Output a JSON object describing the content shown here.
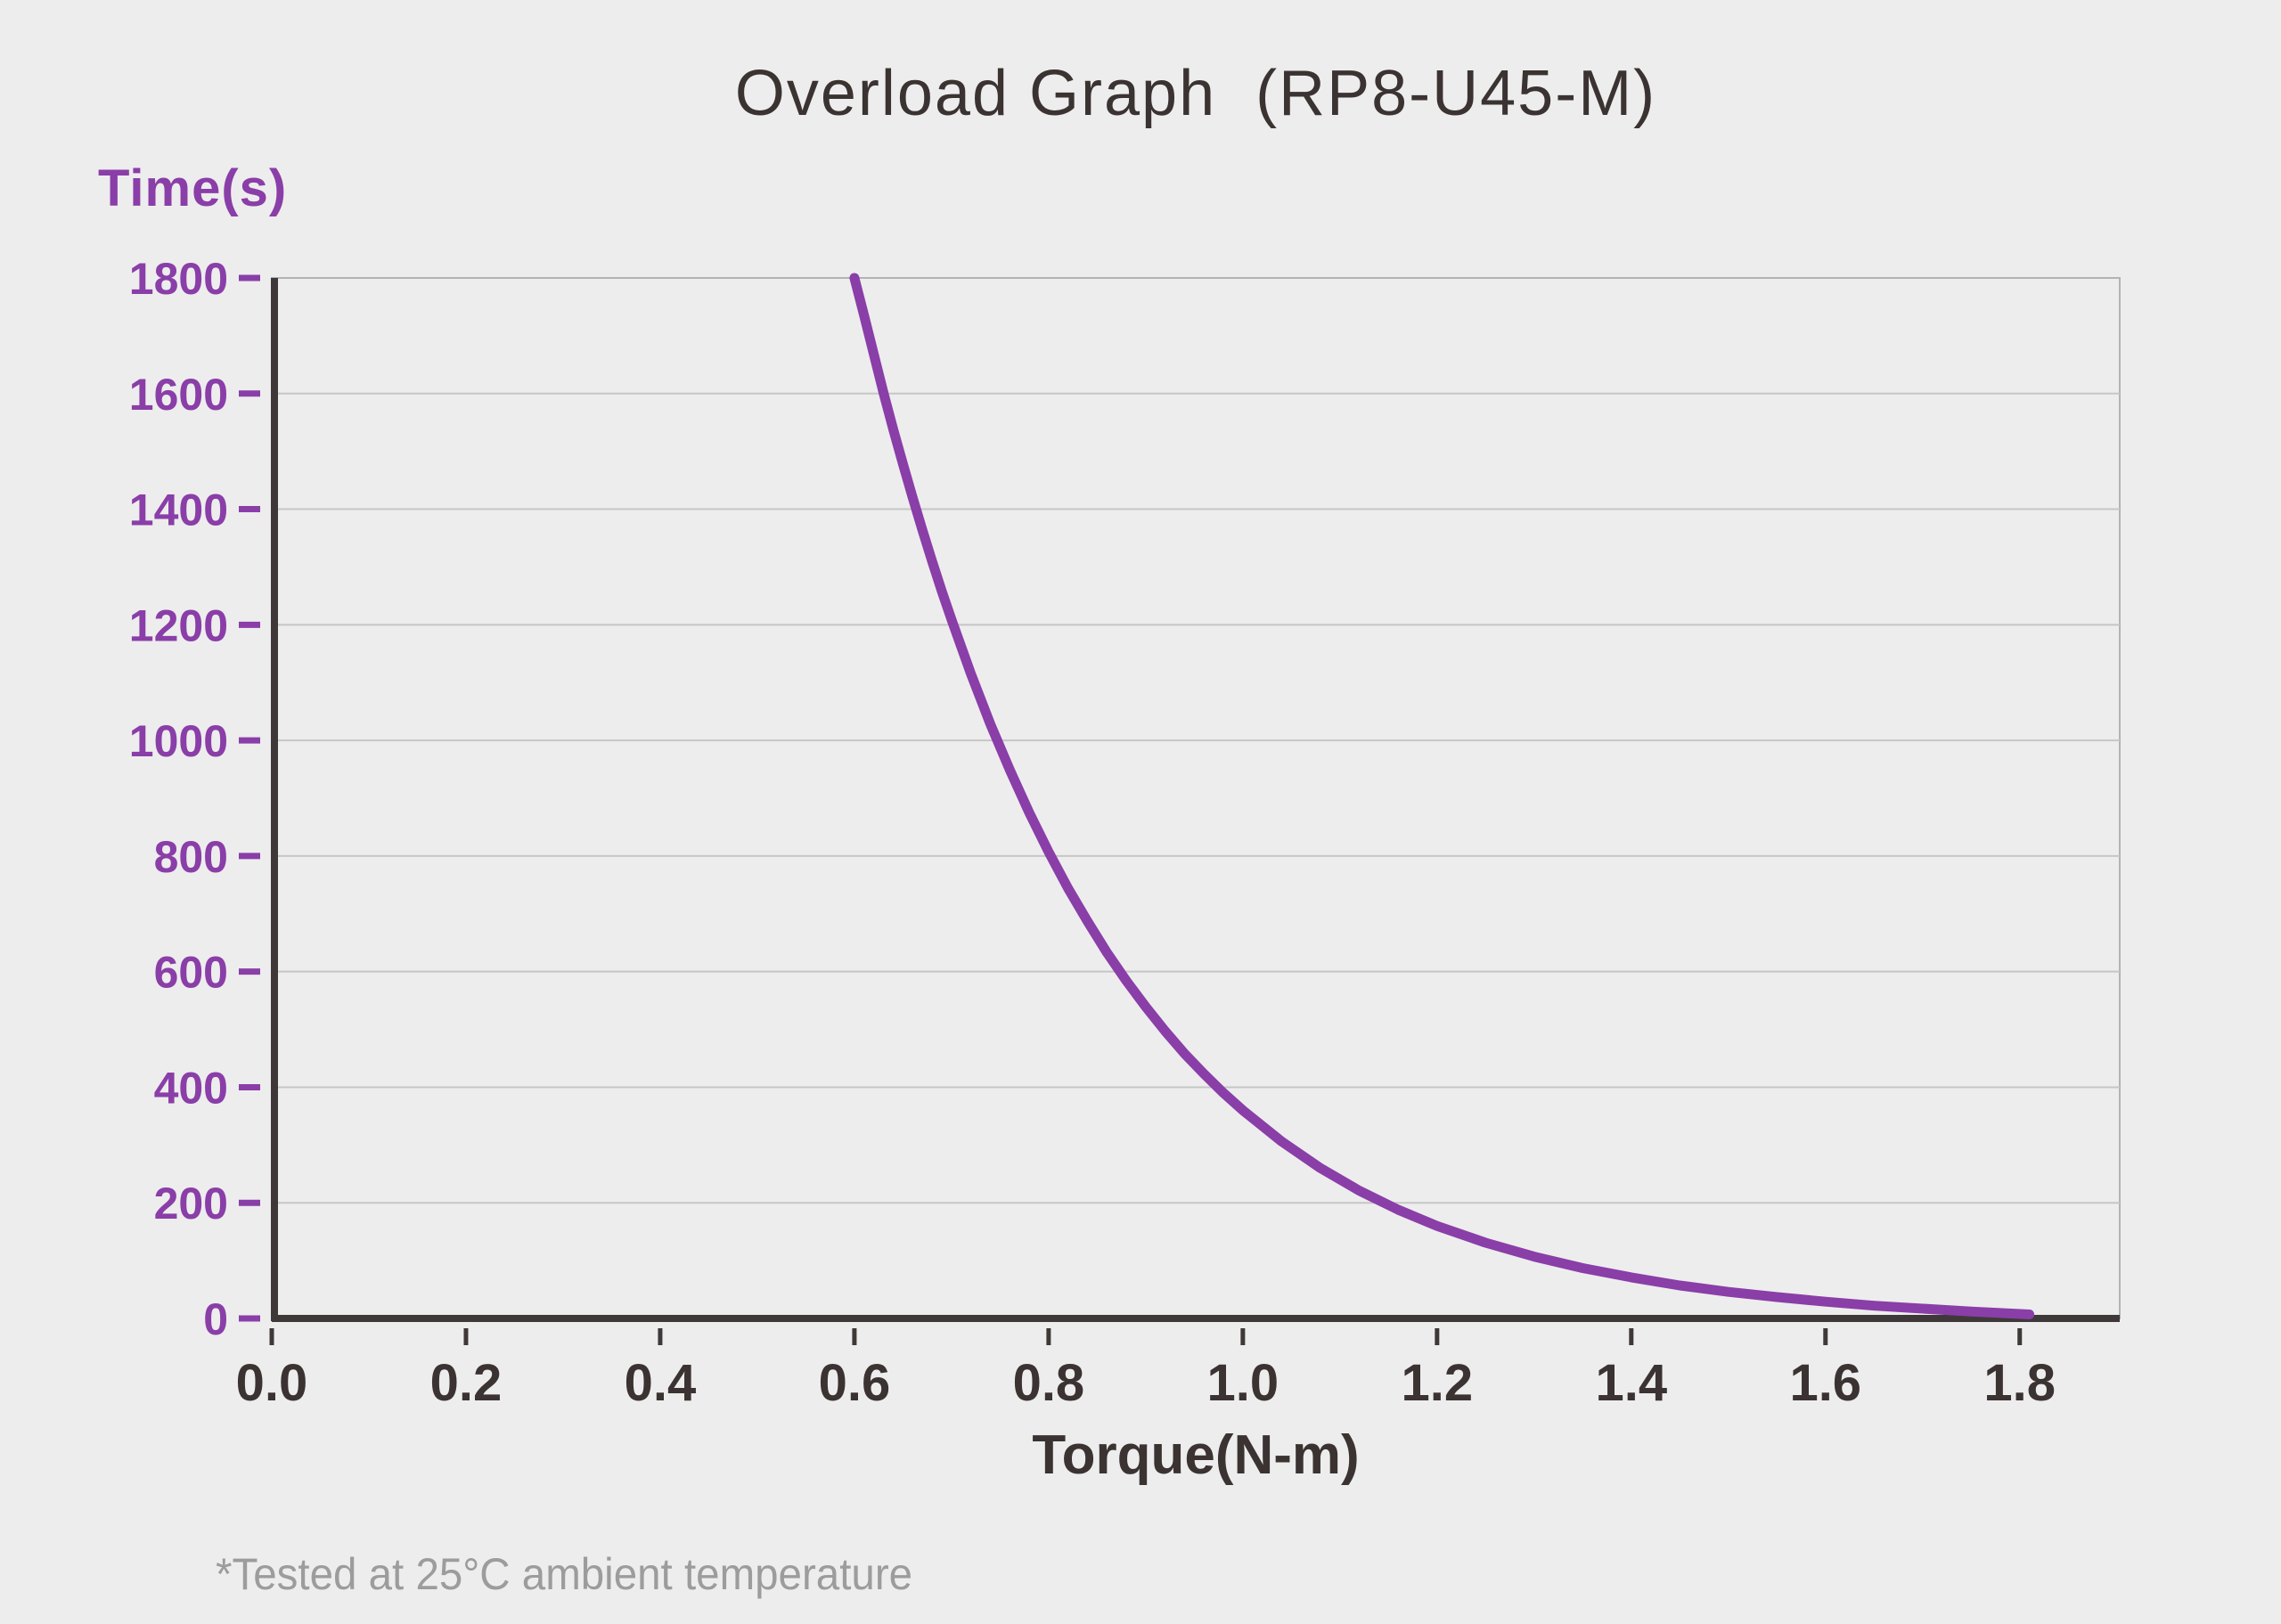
{
  "page": {
    "background": "#EDEDED"
  },
  "chart": {
    "title": "Overload Graph  (RP8-U45-M)",
    "y_axis_title": "Time(s)",
    "x_axis_title": "Torque(N-m)",
    "footnote": "*Tested at 25°C ambient temperature"
  },
  "chart_data": {
    "type": "line",
    "title": "Overload Graph (RP8-U45-M)",
    "xlabel": "Torque(N-m)",
    "ylabel": "Time(s)",
    "xlim": [
      0,
      1.903
    ],
    "ylim": [
      0,
      1800
    ],
    "x_ticks": [
      "0.0",
      "0.2",
      "0.4",
      "0.6",
      "0.8",
      "1.0",
      "1.2",
      "1.4",
      "1.6",
      "1.8"
    ],
    "x_tick_values": [
      0,
      0.2,
      0.4,
      0.6,
      0.8,
      1.0,
      1.2,
      1.4,
      1.6,
      1.8
    ],
    "y_ticks": [
      0,
      200,
      400,
      600,
      800,
      1000,
      1200,
      1400,
      1600,
      1800
    ],
    "grid": "horizontal-only",
    "legend": "none",
    "colors": {
      "curve": "#8A3EA8",
      "axis_labels_y": "#8A3EA8",
      "axis_labels_x": "#3A3332",
      "axis_line": "#3E3938",
      "gridline": "#C6C6C6",
      "frame": "#B3B3B3",
      "background": "#EDEDED",
      "footnote": "#9C9C9C"
    },
    "series": [
      {
        "name": "overload-time-vs-torque",
        "color": "#8A3EA8",
        "points": [
          [
            0.6,
            1800
          ],
          [
            0.61,
            1735
          ],
          [
            0.62,
            1668
          ],
          [
            0.63,
            1601
          ],
          [
            0.64,
            1538
          ],
          [
            0.65,
            1478
          ],
          [
            0.66,
            1420
          ],
          [
            0.67,
            1364
          ],
          [
            0.68,
            1310
          ],
          [
            0.69,
            1258
          ],
          [
            0.7,
            1209
          ],
          [
            0.72,
            1115
          ],
          [
            0.74,
            1028
          ],
          [
            0.76,
            949
          ],
          [
            0.78,
            875
          ],
          [
            0.8,
            807
          ],
          [
            0.82,
            744
          ],
          [
            0.84,
            687
          ],
          [
            0.86,
            633
          ],
          [
            0.88,
            584
          ],
          [
            0.9,
            539
          ],
          [
            0.92,
            497
          ],
          [
            0.94,
            458
          ],
          [
            0.96,
            423
          ],
          [
            0.98,
            390
          ],
          [
            1.0,
            360
          ],
          [
            1.04,
            306
          ],
          [
            1.08,
            260
          ],
          [
            1.12,
            221
          ],
          [
            1.16,
            188
          ],
          [
            1.2,
            160
          ],
          [
            1.25,
            131
          ],
          [
            1.3,
            107
          ],
          [
            1.35,
            87
          ],
          [
            1.4,
            71
          ],
          [
            1.45,
            57
          ],
          [
            1.5,
            46
          ],
          [
            1.55,
            37
          ],
          [
            1.6,
            29
          ],
          [
            1.65,
            22
          ],
          [
            1.7,
            17
          ],
          [
            1.75,
            12
          ],
          [
            1.81,
            7
          ]
        ]
      }
    ],
    "annotations": [
      "*Tested at 25°C ambient temperature"
    ]
  }
}
